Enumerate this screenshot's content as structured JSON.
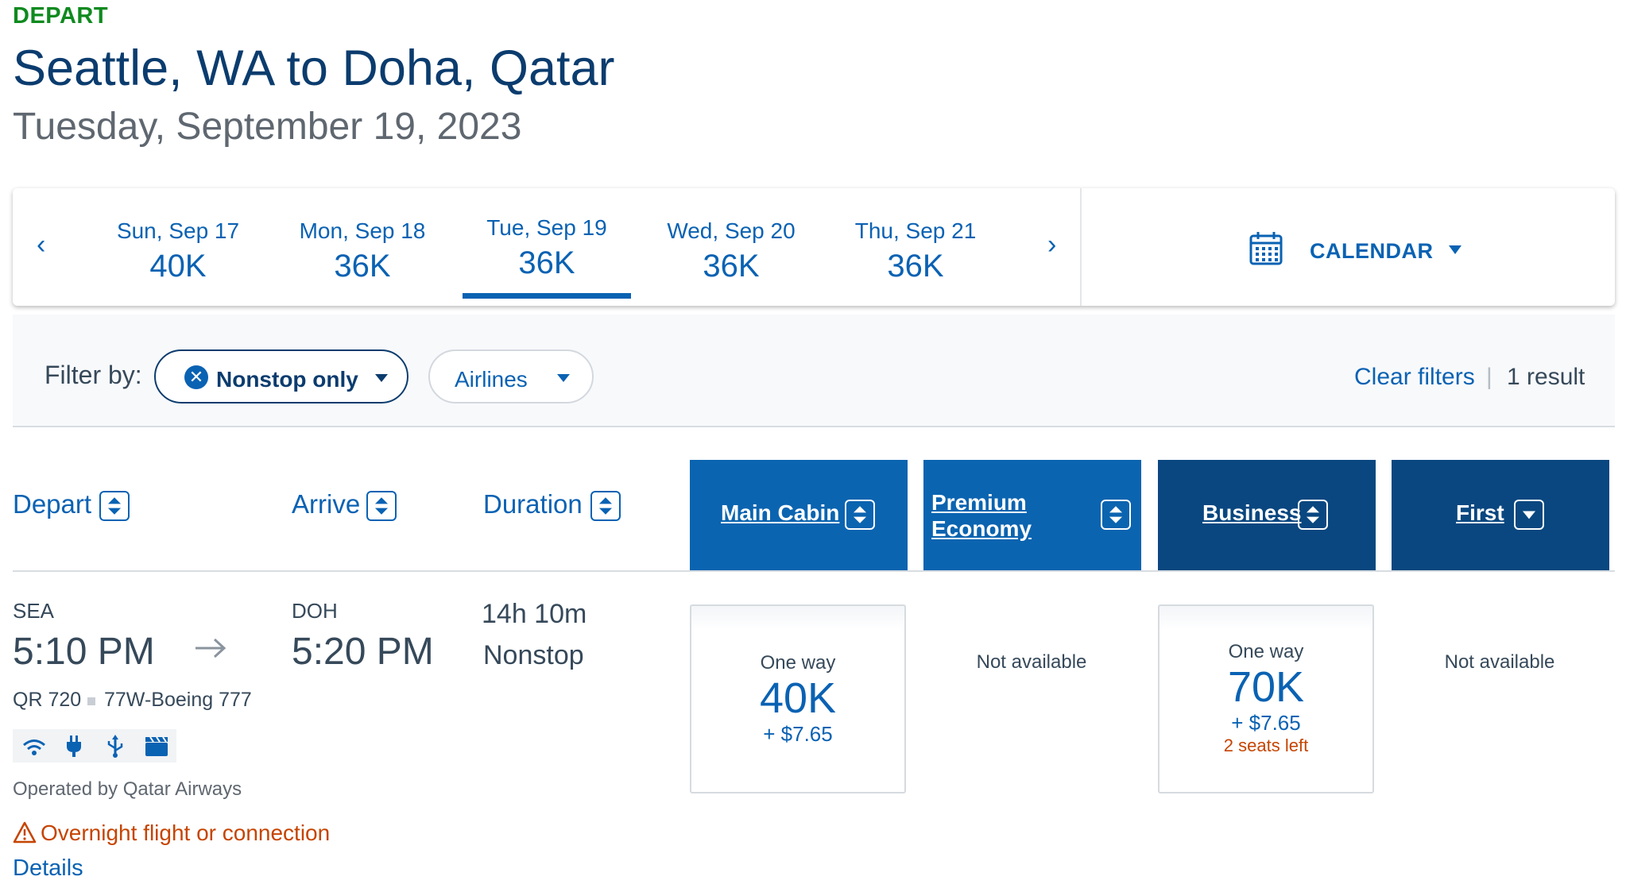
{
  "header": {
    "direction": "DEPART",
    "route": "Seattle, WA to Doha, Qatar",
    "date": "Tuesday, September 19, 2023"
  },
  "date_bar": {
    "days": [
      {
        "day": "Sun, Sep 17",
        "price": "40K"
      },
      {
        "day": "Mon, Sep 18",
        "price": "36K"
      },
      {
        "day": "Tue, Sep 19",
        "price": "36K",
        "selected": true
      },
      {
        "day": "Wed, Sep 20",
        "price": "36K"
      },
      {
        "day": "Thu, Sep 21",
        "price": "36K"
      }
    ],
    "calendar_label": "CALENDAR"
  },
  "filters": {
    "label": "Filter by:",
    "chips": [
      "Nonstop only",
      "Airlines"
    ],
    "clear": "Clear filters",
    "separator": "|",
    "result_count": "1 result"
  },
  "columns": {
    "depart": "Depart",
    "arrive": "Arrive",
    "duration": "Duration",
    "cabins": [
      {
        "label": "Main Cabin"
      },
      {
        "label_line1": "Premium",
        "label_line2": "Economy"
      },
      {
        "label": "Business"
      },
      {
        "label": "First"
      }
    ]
  },
  "flight": {
    "origin": "SEA",
    "depart_time": "5:10 PM",
    "destination": "DOH",
    "arrive_time": "5:20 PM",
    "duration": "14h 10m",
    "stops": "Nonstop",
    "flight_number": "QR 720",
    "aircraft": "77W-Boeing 777",
    "amenities": [
      "wifi-icon",
      "power-plug-icon",
      "usb-icon",
      "entertainment-icon"
    ],
    "operated_by": "Operated by Qatar Airways",
    "warning": "Overnight flight or connection",
    "details_link": "Details",
    "fares": {
      "main_cabin": {
        "label": "One way",
        "points": "40K",
        "fee": "+ $7.65"
      },
      "premium_economy": {
        "status": "Not available"
      },
      "business": {
        "label": "One way",
        "points": "70K",
        "fee": "+ $7.65",
        "seats": "2 seats left"
      },
      "first": {
        "status": "Not available"
      }
    }
  },
  "colors": {
    "brand_blue": "#0a62b3",
    "dark_blue": "#0b3c6e",
    "depart_green": "#0f8a1f",
    "warning_orange": "#c64400",
    "main_cabin_header": "#0b64b0",
    "business_header": "#0a4780"
  }
}
